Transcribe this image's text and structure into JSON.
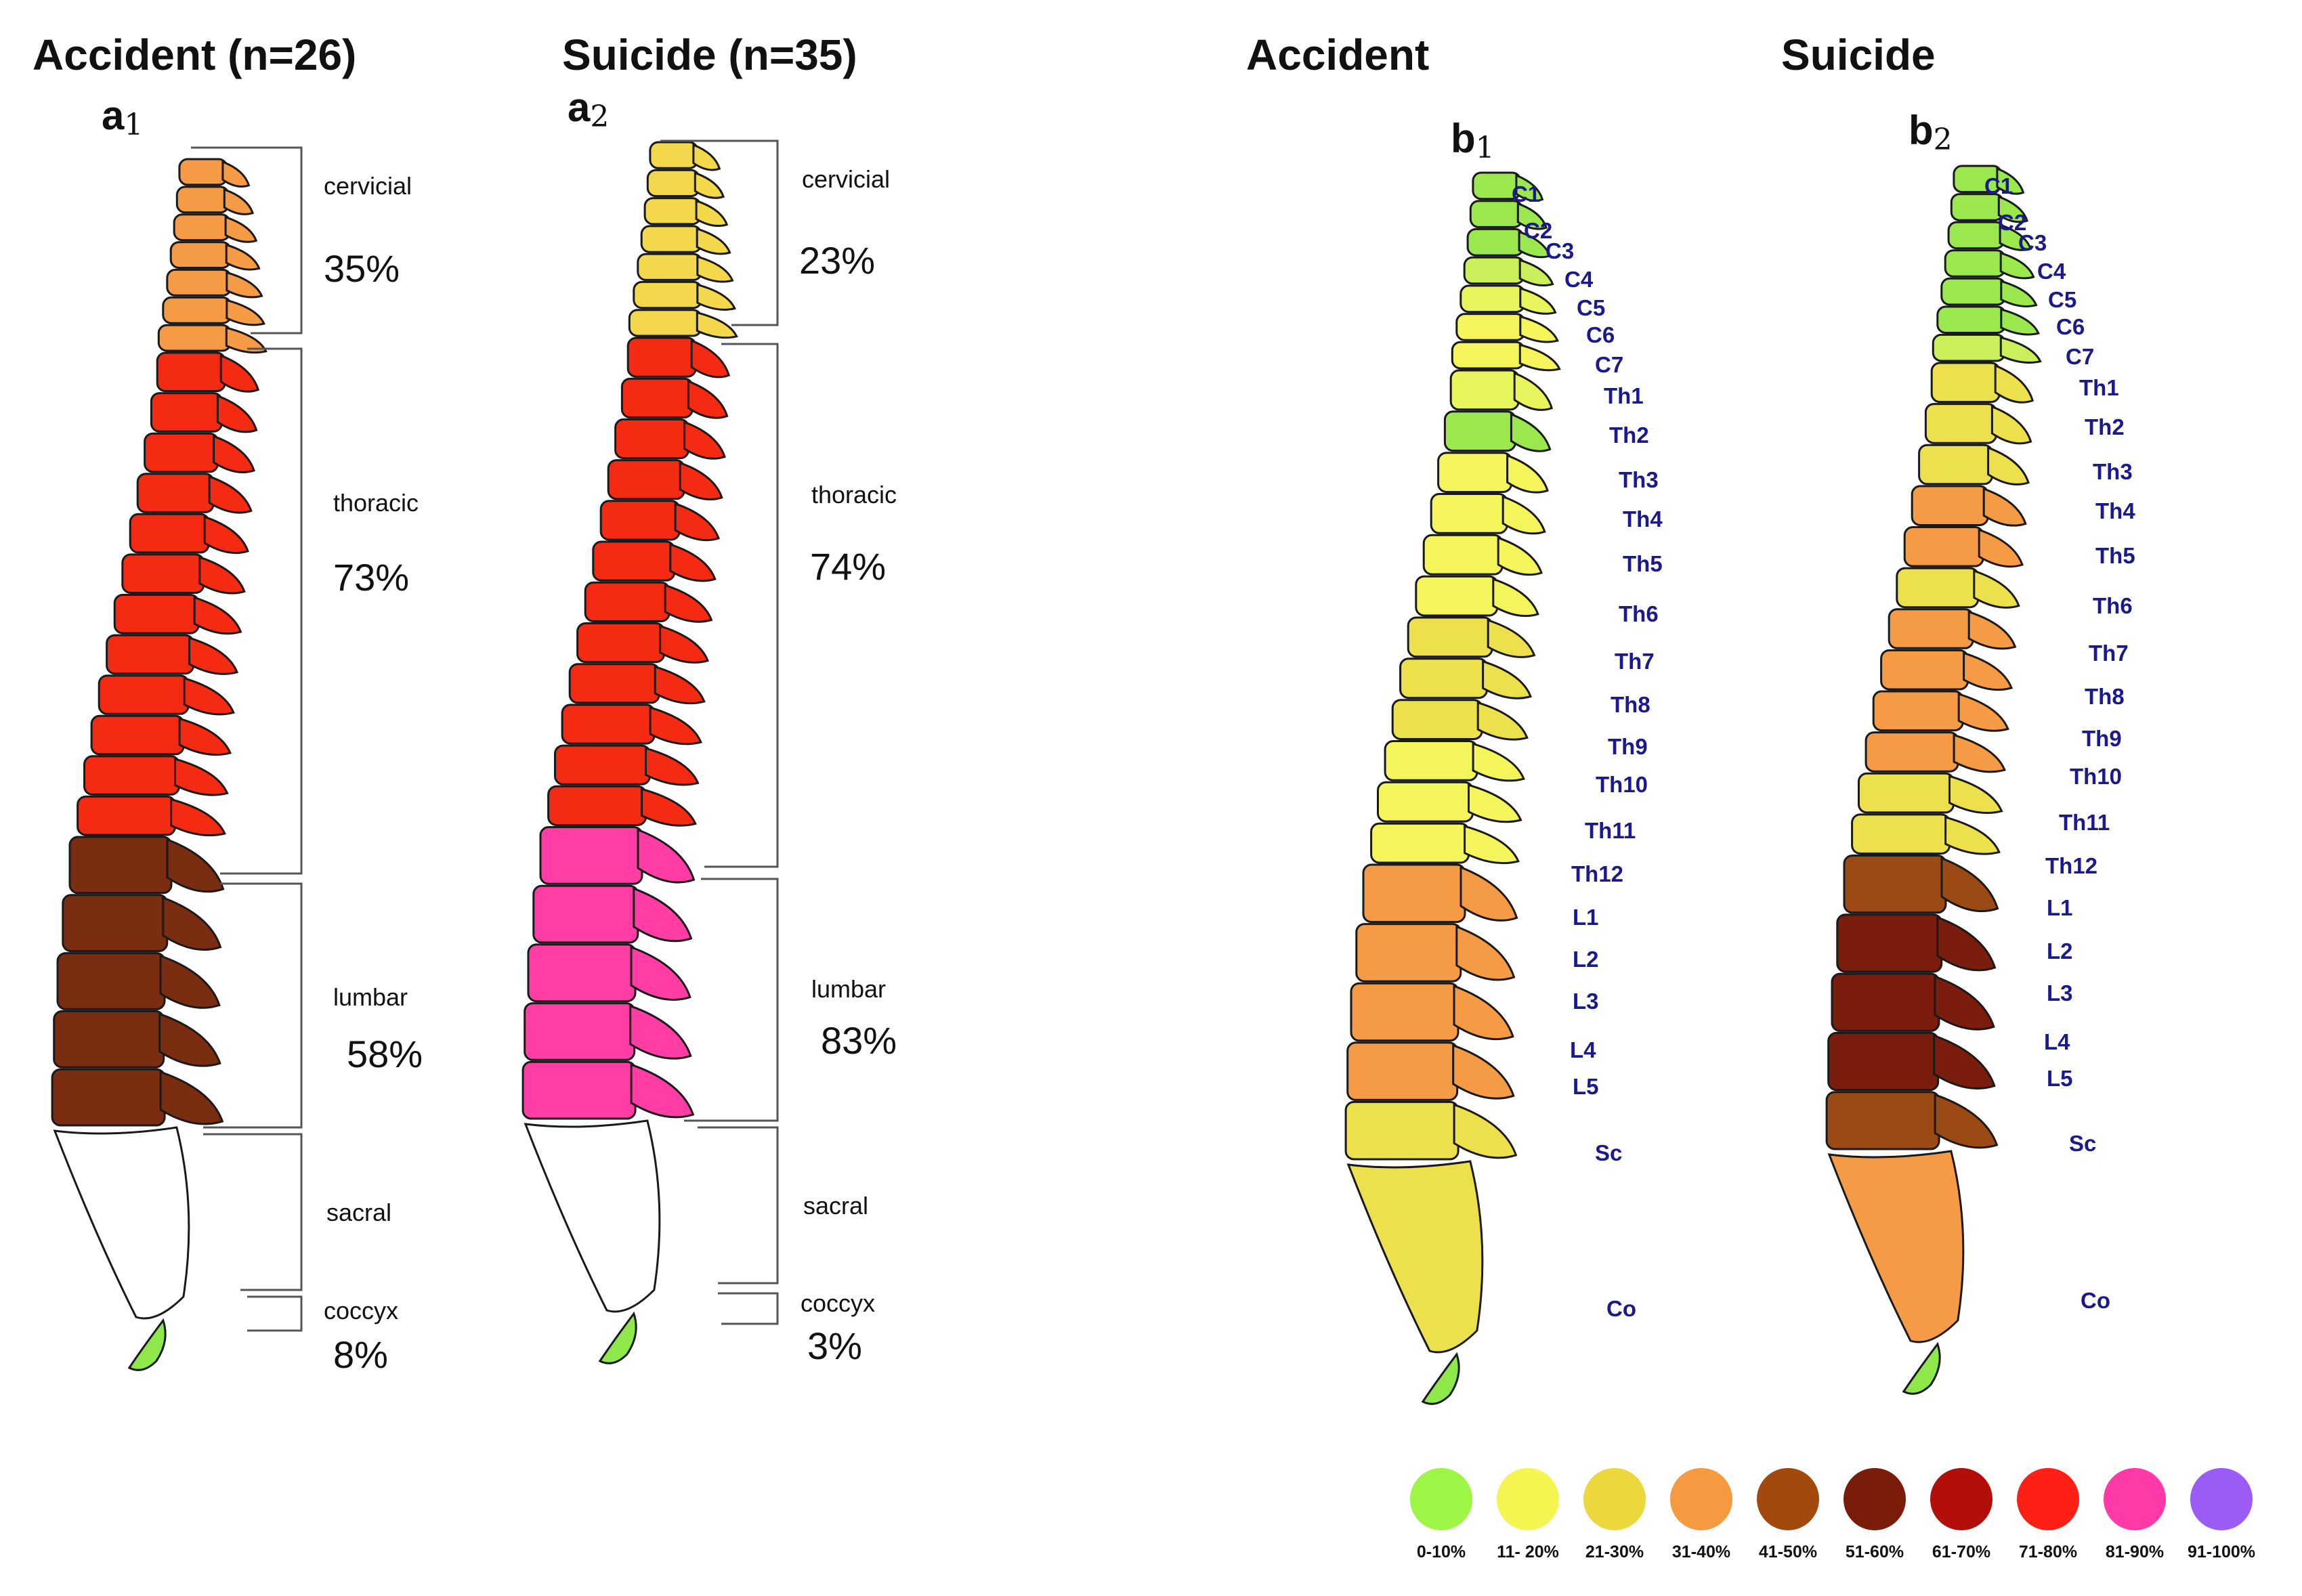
{
  "titles": {
    "a1": "Accident (n=26)",
    "a2": "Suicide (n=35)",
    "b1": "Accident",
    "b2": "Suicide"
  },
  "panel_letters": {
    "a1": {
      "letter": "a",
      "sub": "1"
    },
    "a2": {
      "letter": "a",
      "sub": "2"
    },
    "b1": {
      "letter": "b",
      "sub": "1"
    },
    "b2": {
      "letter": "b",
      "sub": "2"
    }
  },
  "regions_a1": [
    {
      "name": "cervicial",
      "value": "35%",
      "color": "#f59a45"
    },
    {
      "name": "thoracic",
      "value": "73%",
      "color": "#f52a12"
    },
    {
      "name": "lumbar",
      "value": "58%",
      "color": "#7a2d10"
    },
    {
      "name": "sacral",
      "value": "",
      "color": "#ffffff"
    },
    {
      "name": "coccyx",
      "value": "8%",
      "color": "#8fe84a"
    }
  ],
  "regions_a2": [
    {
      "name": "cervicial",
      "value": "23%",
      "color": "#f2d84a"
    },
    {
      "name": "thoracic",
      "value": "74%",
      "color": "#f52a12"
    },
    {
      "name": "lumbar",
      "value": "83%",
      "color": "#ff3da5"
    },
    {
      "name": "sacral",
      "value": "",
      "color": "#ffffff"
    },
    {
      "name": "coccyx",
      "value": "3%",
      "color": "#8fe84a"
    }
  ],
  "vertebra_labels": [
    "C1",
    "C2",
    "C3",
    "C4",
    "C5",
    "C6",
    "C7",
    "Th1",
    "Th2",
    "Th3",
    "Th4",
    "Th5",
    "Th6",
    "Th7",
    "Th8",
    "Th9",
    "Th10",
    "Th11",
    "Th12",
    "L1",
    "L2",
    "L3",
    "L4",
    "L5",
    "Sc",
    "Co"
  ],
  "vertebra_colors_b1": [
    "#9be74e",
    "#9be74e",
    "#9be74e",
    "#c9ef5a",
    "#e9f55c",
    "#f3f55a",
    "#f3f55a",
    "#e9f55c",
    "#9be74e",
    "#f3f55a",
    "#f3f55a",
    "#f3f55a",
    "#f3f55a",
    "#ece04c",
    "#ece04c",
    "#ece04c",
    "#f3f55a",
    "#f3f55a",
    "#f3f55a",
    "#f59a45",
    "#f59a45",
    "#f59a45",
    "#f59a45",
    "#ece04c",
    "#ece04c",
    "#8fe84a"
  ],
  "vertebra_colors_b2": [
    "#9be74e",
    "#9be74e",
    "#9be74e",
    "#9be74e",
    "#9be74e",
    "#9be74e",
    "#c9ef5a",
    "#ece04c",
    "#ece04c",
    "#ece04c",
    "#f59a45",
    "#f59a45",
    "#ece04c",
    "#f59a45",
    "#f59a45",
    "#f59a45",
    "#f59a45",
    "#ece04c",
    "#ece04c",
    "#9c4a14",
    "#7a1d0c",
    "#7a1d0c",
    "#7a1d0c",
    "#9c4a14",
    "#f59a45",
    "#8fe84a"
  ],
  "legend": [
    {
      "label": "0-10%",
      "color": "#9df545"
    },
    {
      "label": "11- 20%",
      "color": "#f5f552"
    },
    {
      "label": "21-30%",
      "color": "#ecd83c"
    },
    {
      "label": "31-40%",
      "color": "#f59a40"
    },
    {
      "label": "41-50%",
      "color": "#a24a0e"
    },
    {
      "label": "51-60%",
      "color": "#7a1c0a"
    },
    {
      "label": "61-70%",
      "color": "#b30f0a"
    },
    {
      "label": "71-80%",
      "color": "#ff1f14"
    },
    {
      "label": "81-90%",
      "color": "#ff3aa8"
    },
    {
      "label": "91-100%",
      "color": "#9a5cf5"
    }
  ]
}
